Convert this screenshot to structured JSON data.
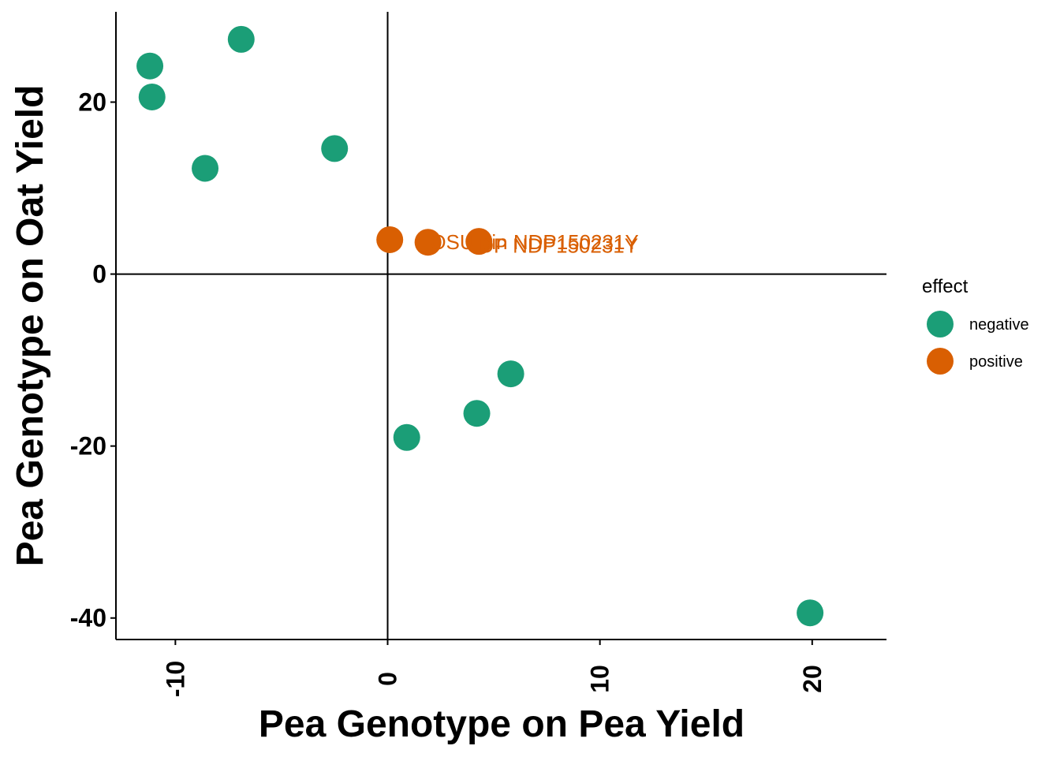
{
  "chart_data": {
    "type": "scatter",
    "xlabel": "Pea Genotype on Pea Yield",
    "ylabel": "Pea Genotype on Oat Yield",
    "xlim": [
      -12.8,
      23.5
    ],
    "ylim": [
      -42.5,
      30.5
    ],
    "x_ticks": [
      -10,
      0,
      10,
      20
    ],
    "y_ticks": [
      -40,
      -20,
      0,
      20
    ],
    "x_tick_labels": [
      "-10",
      "0",
      "10",
      "20"
    ],
    "y_tick_labels": [
      "-40",
      "-20",
      "0",
      "20"
    ],
    "reference_lines": {
      "x": 0,
      "y": 0
    },
    "grid": false,
    "legend": {
      "title": "effect",
      "position": "right",
      "entries": [
        {
          "name": "negative",
          "color": "#1b9e77"
        },
        {
          "name": "positive",
          "color": "#d95f02"
        }
      ]
    },
    "series": [
      {
        "name": "negative",
        "color": "#1b9e77",
        "points": [
          {
            "x": -6.9,
            "y": 27.3
          },
          {
            "x": -11.2,
            "y": 24.2
          },
          {
            "x": -11.1,
            "y": 20.6
          },
          {
            "x": -8.6,
            "y": 12.3
          },
          {
            "x": -2.5,
            "y": 14.6
          },
          {
            "x": 5.8,
            "y": -11.6
          },
          {
            "x": 4.2,
            "y": -16.2
          },
          {
            "x": 0.9,
            "y": -19.0
          },
          {
            "x": 19.9,
            "y": -39.4
          }
        ]
      },
      {
        "name": "positive",
        "color": "#d95f02",
        "points": [
          {
            "x": 0.1,
            "y": 4.0
          },
          {
            "x": 1.9,
            "y": 3.7
          },
          {
            "x": 4.3,
            "y": 3.8
          }
        ]
      }
    ],
    "annotations": [
      {
        "text": "OSU pin NDP150231Y",
        "x": 2.0,
        "y": 3.7
      },
      {
        "text": "DP NDP150231Y",
        "x": 4.3,
        "y": 3.3
      }
    ]
  }
}
